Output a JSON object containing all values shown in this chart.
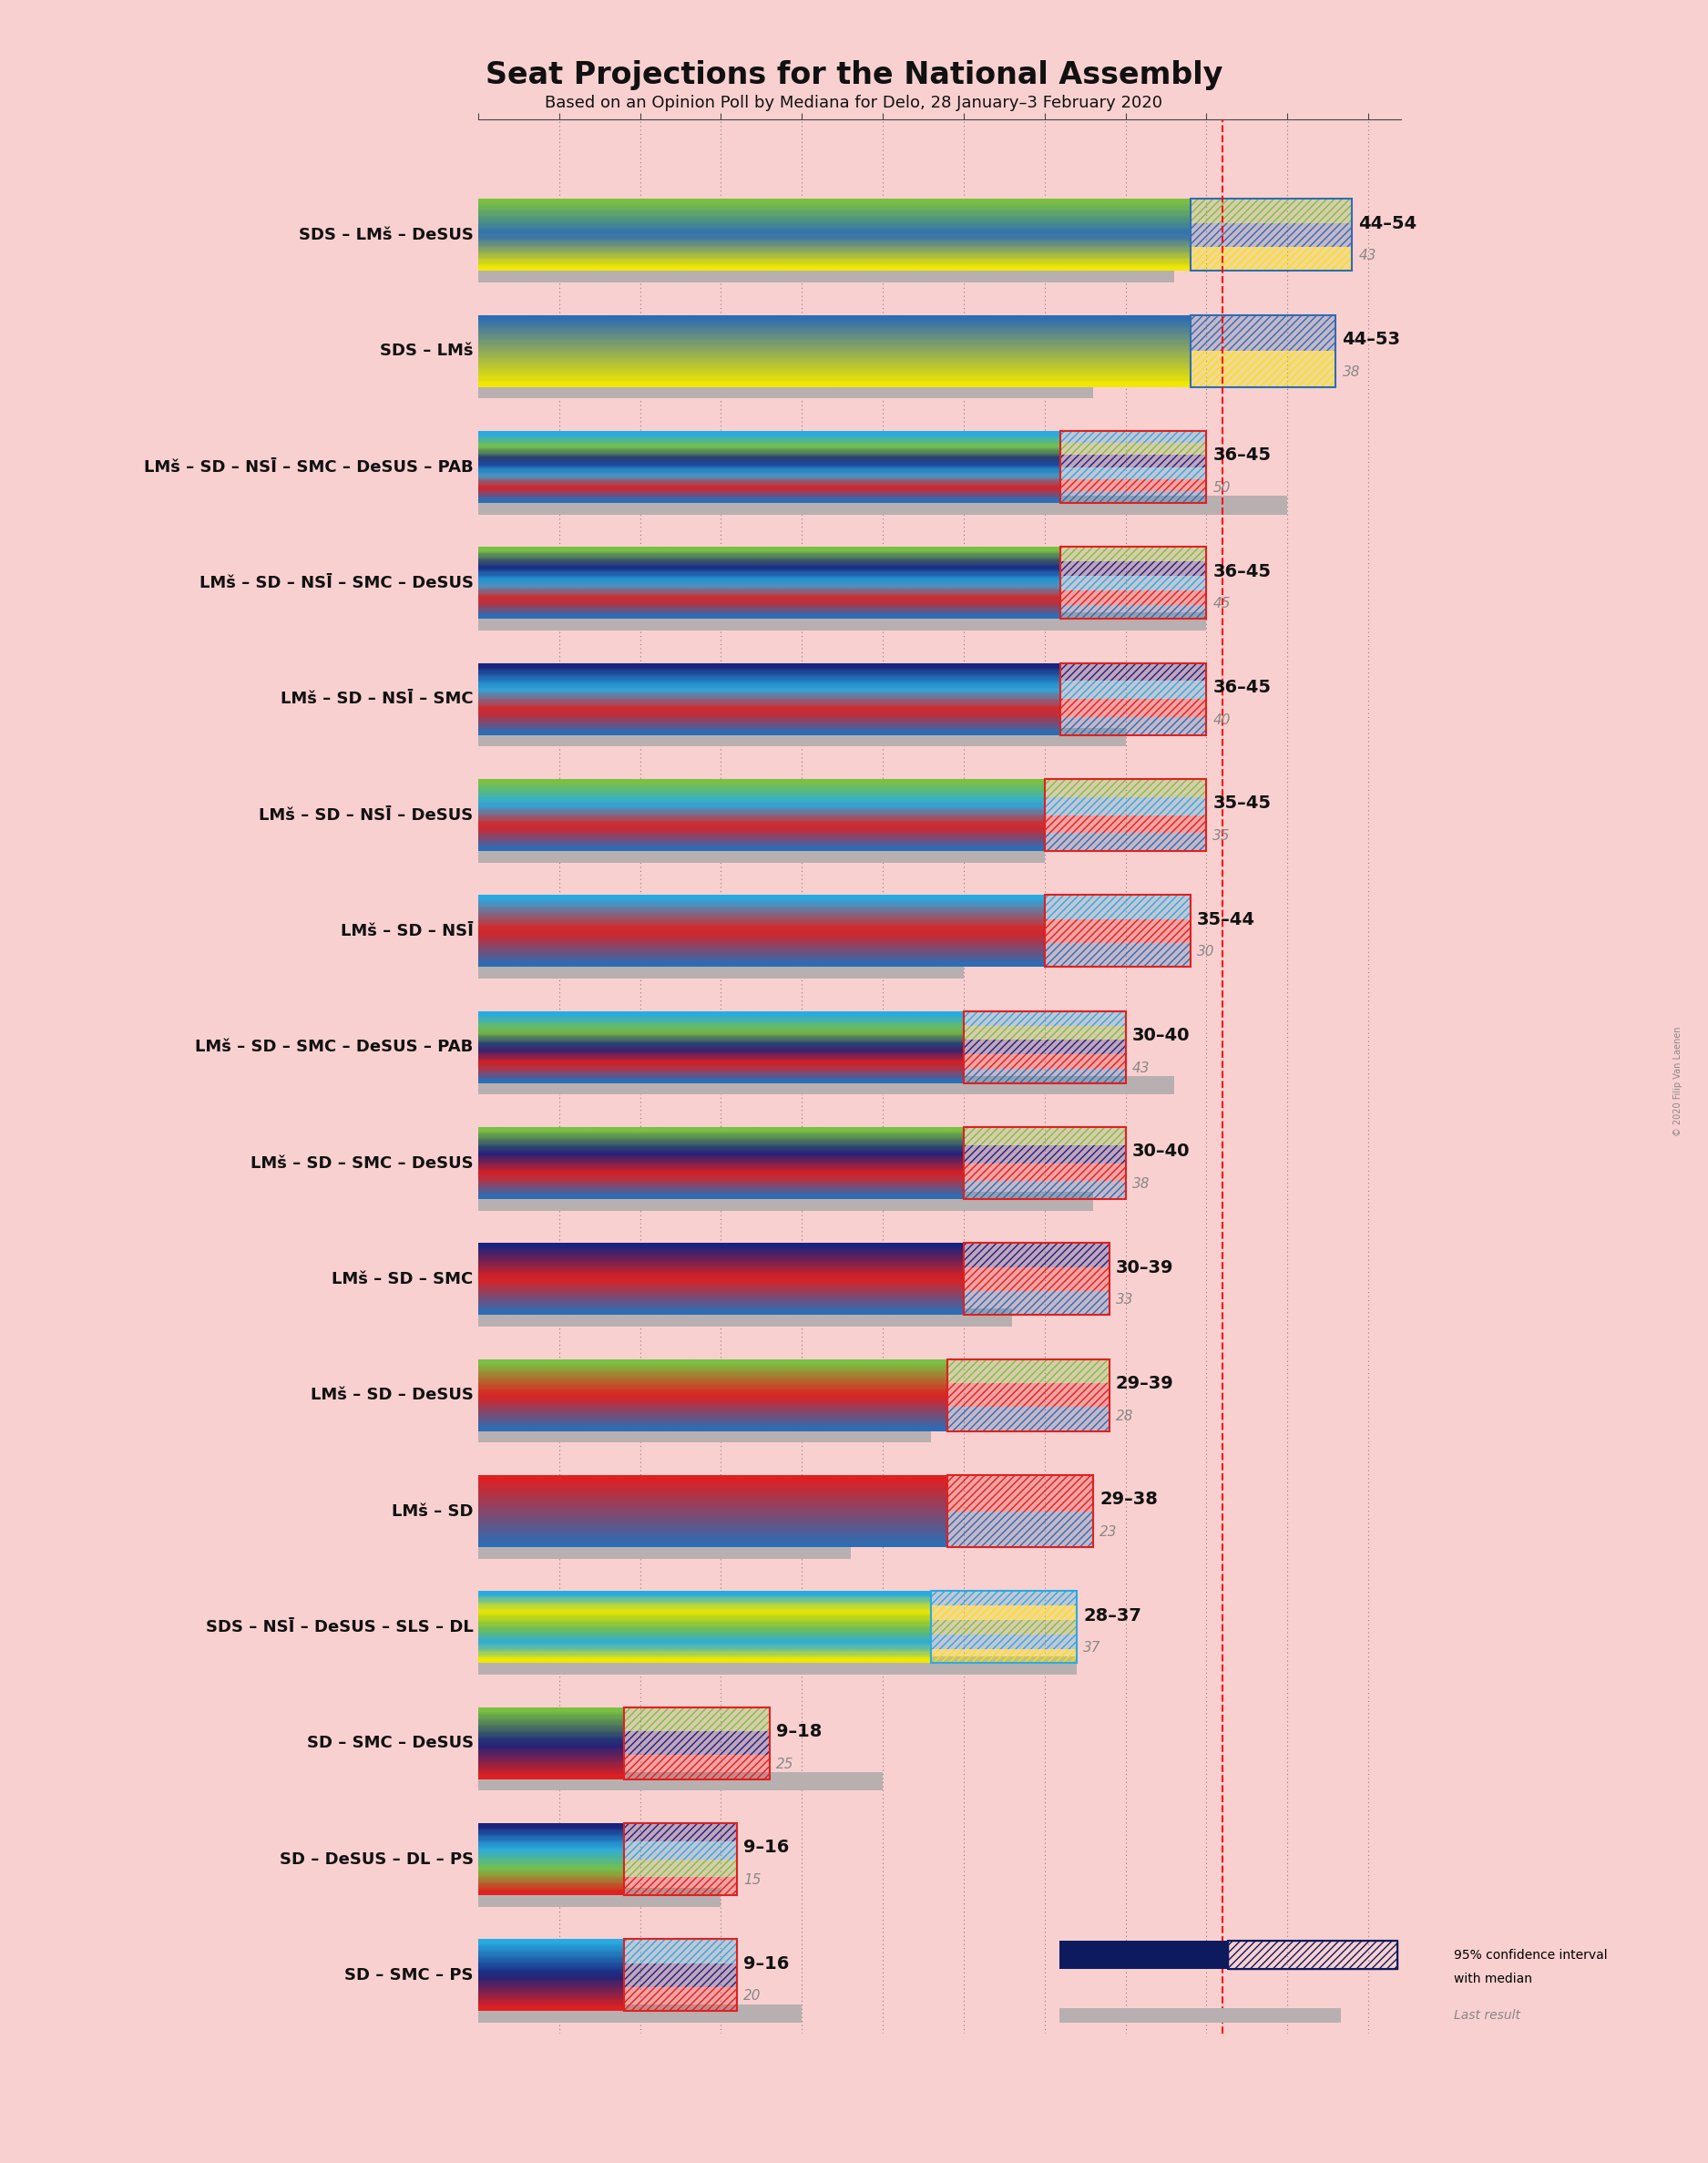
{
  "title": "Seat Projections for the National Assembly",
  "subtitle": "Based on an Opinion Poll by Mediana for Delo, 28 January–3 February 2020",
  "background_color": "#f9d0d0",
  "majority_line": 46,
  "coalitions": [
    {
      "name": "SDS – LMš – DeSUS",
      "range_low": 44,
      "range_high": 54,
      "median": 43,
      "last_result": 43,
      "bar_colors": [
        "#f0e800",
        "#2e6db4",
        "#7ac142"
      ],
      "ci_border_color": "#2e6db4"
    },
    {
      "name": "SDS – LMš",
      "range_low": 44,
      "range_high": 53,
      "median": 38,
      "last_result": 38,
      "bar_colors": [
        "#f0e800",
        "#2e6db4"
      ],
      "ci_border_color": "#2e6db4"
    },
    {
      "name": "LMš – SD – NSĪ – SMC – DeSUS – PAB",
      "range_low": 36,
      "range_high": 45,
      "median": 50,
      "last_result": 50,
      "bar_colors": [
        "#2e6db4",
        "#e02020",
        "#29abe2",
        "#1a237e",
        "#7ac142",
        "#29abe2"
      ],
      "ci_border_color": "#e02020"
    },
    {
      "name": "LMš – SD – NSĪ – SMC – DeSUS",
      "range_low": 36,
      "range_high": 45,
      "median": 45,
      "last_result": 45,
      "bar_colors": [
        "#2e6db4",
        "#e02020",
        "#29abe2",
        "#1a237e",
        "#7ac142"
      ],
      "ci_border_color": "#e02020"
    },
    {
      "name": "LMš – SD – NSĪ – SMC",
      "range_low": 36,
      "range_high": 45,
      "median": 40,
      "last_result": 40,
      "bar_colors": [
        "#2e6db4",
        "#e02020",
        "#29abe2",
        "#1a237e"
      ],
      "ci_border_color": "#e02020"
    },
    {
      "name": "LMš – SD – NSĪ – DeSUS",
      "range_low": 35,
      "range_high": 45,
      "median": 35,
      "last_result": 35,
      "bar_colors": [
        "#2e6db4",
        "#e02020",
        "#29abe2",
        "#7ac142"
      ],
      "ci_border_color": "#e02020"
    },
    {
      "name": "LMš – SD – NSĪ",
      "range_low": 35,
      "range_high": 44,
      "median": 30,
      "last_result": 30,
      "bar_colors": [
        "#2e6db4",
        "#e02020",
        "#29abe2"
      ],
      "ci_border_color": "#e02020"
    },
    {
      "name": "LMš – SD – SMC – DeSUS – PAB",
      "range_low": 30,
      "range_high": 40,
      "median": 43,
      "last_result": 43,
      "bar_colors": [
        "#2e6db4",
        "#e02020",
        "#1a237e",
        "#7ac142",
        "#29abe2"
      ],
      "ci_border_color": "#e02020"
    },
    {
      "name": "LMš – SD – SMC – DeSUS",
      "range_low": 30,
      "range_high": 40,
      "median": 38,
      "last_result": 38,
      "bar_colors": [
        "#2e6db4",
        "#e02020",
        "#1a237e",
        "#7ac142"
      ],
      "ci_border_color": "#e02020"
    },
    {
      "name": "LMš – SD – SMC",
      "range_low": 30,
      "range_high": 39,
      "median": 33,
      "last_result": 33,
      "bar_colors": [
        "#2e6db4",
        "#e02020",
        "#1a237e"
      ],
      "ci_border_color": "#e02020"
    },
    {
      "name": "LMš – SD – DeSUS",
      "range_low": 29,
      "range_high": 39,
      "median": 28,
      "last_result": 28,
      "bar_colors": [
        "#2e6db4",
        "#e02020",
        "#7ac142"
      ],
      "ci_border_color": "#e02020"
    },
    {
      "name": "LMš – SD",
      "range_low": 29,
      "range_high": 38,
      "median": 23,
      "last_result": 23,
      "bar_colors": [
        "#2e6db4",
        "#e02020"
      ],
      "ci_border_color": "#e02020"
    },
    {
      "name": "SDS – NSĪ – DeSUS – SLS – DL",
      "range_low": 28,
      "range_high": 37,
      "median": 37,
      "last_result": 37,
      "bar_colors": [
        "#f0e800",
        "#29abe2",
        "#7ac142",
        "#f0e800",
        "#29abe2"
      ],
      "ci_border_color": "#29abe2"
    },
    {
      "name": "SD – SMC – DeSUS",
      "range_low": 9,
      "range_high": 18,
      "median": 25,
      "last_result": 25,
      "bar_colors": [
        "#e02020",
        "#1a237e",
        "#7ac142"
      ],
      "ci_border_color": "#e02020"
    },
    {
      "name": "SD – DeSUS – DL – PS",
      "range_low": 9,
      "range_high": 16,
      "median": 15,
      "last_result": 15,
      "bar_colors": [
        "#e02020",
        "#7ac142",
        "#29abe2",
        "#1a237e"
      ],
      "ci_border_color": "#e02020"
    },
    {
      "name": "SD – SMC – PS",
      "range_low": 9,
      "range_high": 16,
      "median": 20,
      "last_result": 20,
      "bar_colors": [
        "#e02020",
        "#1a237e",
        "#29abe2"
      ],
      "ci_border_color": "#e02020"
    }
  ],
  "x_ticks": [
    0,
    5,
    10,
    15,
    20,
    25,
    30,
    35,
    40,
    45,
    50,
    55
  ],
  "x_max": 57,
  "gray_color": "#b8b0b0",
  "legend_text1": "95% confidence interval",
  "legend_text2": "with median",
  "legend_text3": "Last result",
  "copyright": "© 2020 Filip Van Laenen"
}
